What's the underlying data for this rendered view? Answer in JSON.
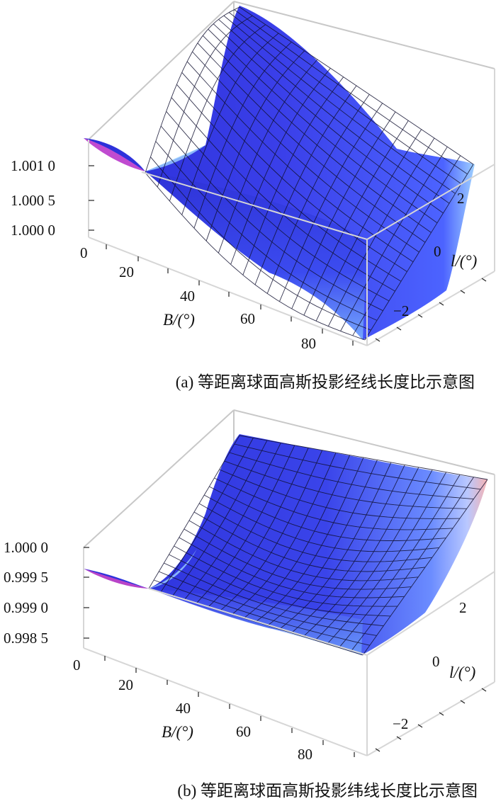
{
  "chart_data": [
    {
      "type": "surface3d",
      "caption": "(a) 等距离球面高斯投影经线长度比示意图",
      "xlabel": "B/(°)",
      "ylabel": "l/(°)",
      "x_ticks": [
        "0",
        "20",
        "40",
        "60",
        "80"
      ],
      "y_ticks": [
        "2",
        "0",
        "−2"
      ],
      "z_ticks": [
        "1.000 0",
        "1.000 5",
        "1.001 0"
      ],
      "xlim": [
        0,
        90
      ],
      "ylim": [
        -3,
        3
      ],
      "zlim": [
        1.0,
        1.00137
      ],
      "z_min": 1.0,
      "z_max": 1.00137,
      "colors": {
        "surface": "#3535e6",
        "highlight": "#8ec3ff",
        "edge_warm": "#c94bd6",
        "box": "#bfbfbf"
      }
    },
    {
      "type": "surface3d",
      "caption": "(b) 等距离球面高斯投影纬线长度比示意图",
      "xlabel": "B/(°)",
      "ylabel": "l/(°)",
      "x_ticks": [
        "0",
        "20",
        "40",
        "60",
        "80"
      ],
      "y_ticks": [
        "2",
        "0",
        "−2"
      ],
      "z_ticks": [
        "1.000 0",
        "0.999 5",
        "0.999 0",
        "0.998 5"
      ],
      "xlim": [
        0,
        90
      ],
      "ylim": [
        -3,
        3
      ],
      "zlim": [
        0.99825,
        1.0
      ],
      "z_min": 0.99825,
      "z_max": 1.0,
      "colors": {
        "surface": "#3535e6",
        "highlight": "#8ec3ff",
        "edge_warm": "#f4b0b0",
        "box": "#bfbfbf"
      }
    }
  ]
}
